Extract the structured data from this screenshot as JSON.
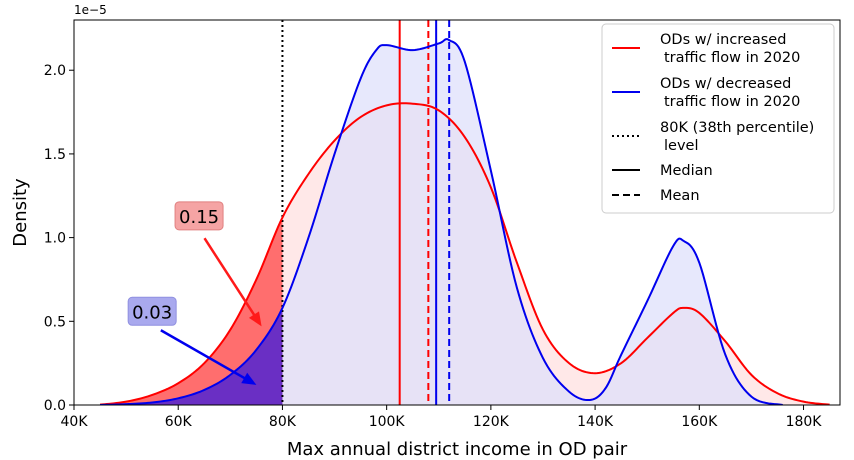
{
  "chart_data": {
    "type": "area",
    "xlabel": "Max annual district income in OD pair",
    "ylabel": "Density",
    "xlim": [
      40000,
      187000
    ],
    "ylim": [
      0,
      2.3e-05
    ],
    "y_offset_label": "1e−5",
    "x_ticks": [
      {
        "value": 40000,
        "label": "40K"
      },
      {
        "value": 60000,
        "label": "60K"
      },
      {
        "value": 80000,
        "label": "80K"
      },
      {
        "value": 100000,
        "label": "100K"
      },
      {
        "value": 120000,
        "label": "120K"
      },
      {
        "value": 140000,
        "label": "140K"
      },
      {
        "value": 160000,
        "label": "160K"
      },
      {
        "value": 180000,
        "label": "180K"
      }
    ],
    "y_ticks": [
      {
        "value": 0,
        "label": "0.0"
      },
      {
        "value": 5e-06,
        "label": "0.5"
      },
      {
        "value": 1e-05,
        "label": "1.0"
      },
      {
        "value": 1.5e-05,
        "label": "1.5"
      },
      {
        "value": 2e-05,
        "label": "2.0"
      }
    ],
    "series": [
      {
        "name": "ODs w/ increased traffic flow in 2020",
        "color": "#ff0000",
        "fill_color": "#ffe0e0",
        "tail_fill_color": "#ff6e6e",
        "median": 102500,
        "mean": 108000,
        "x": [
          45000,
          50000,
          55000,
          60000,
          65000,
          70000,
          75000,
          80000,
          85000,
          90000,
          95000,
          100000,
          105000,
          110000,
          115000,
          120000,
          125000,
          130000,
          135000,
          140000,
          145000,
          150000,
          155000,
          157000,
          160000,
          165000,
          170000,
          175000,
          180000,
          185000
        ],
        "y": [
          2e-08,
          2e-07,
          6e-07,
          1.3e-06,
          2.5e-06,
          4.5e-06,
          7.5e-06,
          1.12e-05,
          1.38e-05,
          1.58e-05,
          1.72e-05,
          1.79e-05,
          1.8e-05,
          1.76e-05,
          1.6e-05,
          1.3e-05,
          8.5e-06,
          4.5e-06,
          2.5e-06,
          1.9e-06,
          2.5e-06,
          4e-06,
          5.5e-06,
          5.8e-06,
          5.5e-06,
          3.8e-06,
          1.8e-06,
          7e-07,
          2e-07,
          2e-08
        ]
      },
      {
        "name": "ODs w/ decreased traffic flow in 2020",
        "color": "#0000ee",
        "fill_color": "#dfe0fb",
        "tail_fill_color": "#6a2fc4",
        "median": 109500,
        "mean": 112000,
        "x": [
          45000,
          50000,
          55000,
          60000,
          65000,
          70000,
          75000,
          80000,
          85000,
          90000,
          95000,
          98000,
          100000,
          105000,
          110000,
          112000,
          115000,
          120000,
          125000,
          130000,
          135000,
          139000,
          142000,
          145000,
          150000,
          155000,
          157000,
          160000,
          165000,
          170000,
          176000
        ],
        "y": [
          0.0,
          5e-08,
          1.5e-07,
          4e-07,
          9e-07,
          1.8e-06,
          3.3e-06,
          5.8e-06,
          1e-05,
          1.5e-05,
          1.95e-05,
          2.12e-05,
          2.15e-05,
          2.12e-05,
          2.16e-05,
          2.18e-05,
          2.05e-05,
          1.4e-05,
          7e-06,
          2.8e-06,
          8e-07,
          3e-07,
          1e-06,
          3e-06,
          6.2e-06,
          9.5e-06,
          9.8e-06,
          8.5e-06,
          3e-06,
          5e-07,
          0.0
        ]
      }
    ],
    "threshold_line": {
      "value": 80000,
      "color": "#000000",
      "style": "dotted"
    },
    "annotations": [
      {
        "text": "0.15",
        "series": 0,
        "box_color": "#f5a4a4",
        "box_edge": "#e08080",
        "arrow_color": "#ff1a1a",
        "text_x": 64000,
        "text_y": 1.13e-05,
        "arrow_x": 76000,
        "arrow_y": 4.7e-06
      },
      {
        "text": "0.03",
        "series": 1,
        "box_color": "#a9a9ee",
        "box_edge": "#9090e0",
        "arrow_color": "#0000ee",
        "text_x": 55000,
        "text_y": 5.6e-06,
        "arrow_x": 75000,
        "arrow_y": 1.2e-06
      }
    ],
    "legend": {
      "position": "top-right",
      "entries": [
        {
          "line1": "ODs w/ increased",
          "line2": "traffic flow in 2020",
          "color": "#ff0000",
          "style": "solid"
        },
        {
          "line1": "ODs w/ decreased",
          "line2": "traffic flow in 2020",
          "color": "#0000ee",
          "style": "solid"
        },
        {
          "line1": "80K (38th percentile)",
          "line2": "level",
          "color": "#000000",
          "style": "dotted"
        },
        {
          "line1": "Median",
          "line2": "",
          "color": "#000000",
          "style": "solid"
        },
        {
          "line1": "Mean",
          "line2": "",
          "color": "#000000",
          "style": "dashed"
        }
      ]
    }
  }
}
